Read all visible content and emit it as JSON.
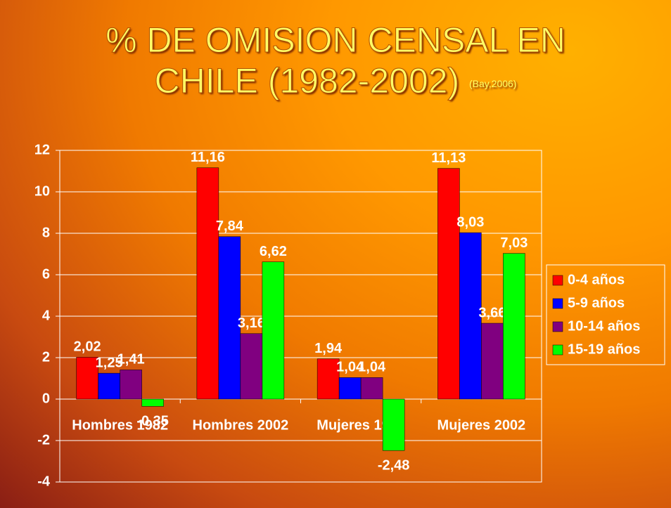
{
  "chart_data": {
    "type": "bar",
    "title": "% DE OMISION CENSAL EN CHILE (1982-2002)",
    "subtitle": "(Bay,2006)",
    "categories": [
      "Hombres 1982",
      "Hombres 2002",
      "Mujeres 1982",
      "Mujeres 2002"
    ],
    "series": [
      {
        "name": "0-4 años",
        "color": "#ff0000",
        "values": [
          2.02,
          11.16,
          1.94,
          11.13
        ],
        "value_labels": [
          "2,02",
          "11,16",
          "1,94",
          "11,13"
        ]
      },
      {
        "name": "5-9 años",
        "color": "#0000ff",
        "values": [
          1.25,
          7.84,
          1.04,
          8.03
        ],
        "value_labels": [
          "1,25",
          "7,84",
          "1,04",
          "8,03"
        ]
      },
      {
        "name": "10-14 años",
        "color": "#800080",
        "values": [
          1.41,
          3.16,
          1.04,
          3.66
        ],
        "value_labels": [
          "1,41",
          "3,16",
          "1,04",
          "3,66"
        ]
      },
      {
        "name": "15-19 años",
        "color": "#00ff00",
        "values": [
          -0.35,
          6.62,
          -2.48,
          7.03
        ],
        "value_labels": [
          "-0,35",
          "6,62",
          "-2,48",
          "7,03"
        ]
      }
    ],
    "ylim": [
      -4,
      12
    ],
    "yticks": [
      -4,
      -2,
      0,
      2,
      4,
      6,
      8,
      10,
      12
    ],
    "grid": true,
    "legend": "right"
  }
}
